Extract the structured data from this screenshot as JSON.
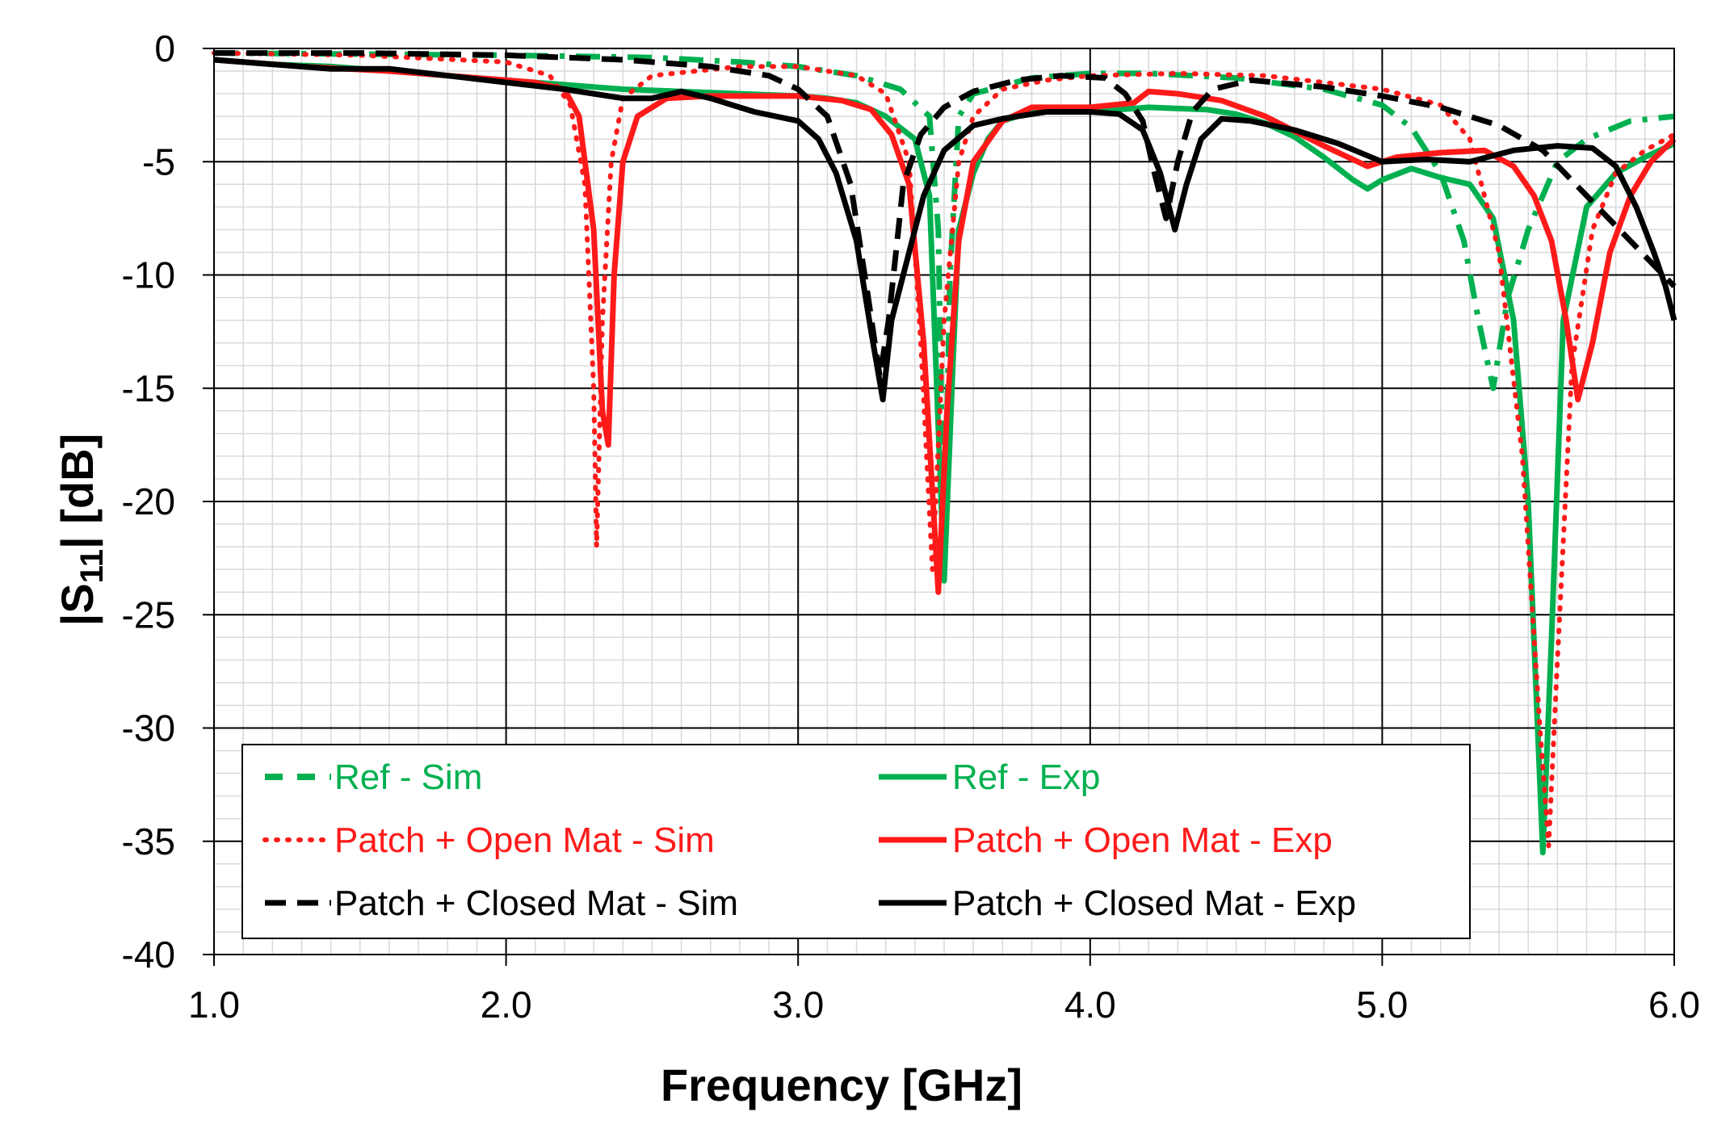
{
  "chart_data": {
    "type": "line",
    "title": "",
    "xlabel": "Frequency [GHz]",
    "ylabel_main": "|S",
    "ylabel_sub": "11",
    "ylabel_rest": "| [dB]",
    "xlim": [
      1.0,
      6.0
    ],
    "ylim": [
      -40,
      0
    ],
    "x_major_ticks": [
      1.0,
      2.0,
      3.0,
      4.0,
      5.0,
      6.0
    ],
    "x_tick_labels": [
      "1.0",
      "2.0",
      "3.0",
      "4.0",
      "5.0",
      "6.0"
    ],
    "x_minor_step": 0.1,
    "y_major_ticks": [
      0,
      -5,
      -10,
      -15,
      -20,
      -25,
      -30,
      -35,
      -40
    ],
    "y_tick_labels": [
      "0",
      "-5",
      "-10",
      "-15",
      "-20",
      "-25",
      "-30",
      "-35",
      "-40"
    ],
    "y_minor_step": 1,
    "grid": true,
    "legend_position": "bottom-left",
    "series": [
      {
        "name": "Ref - Sim",
        "color": "#00b050",
        "style": "dashdot",
        "points": [
          [
            1.0,
            -0.2
          ],
          [
            1.5,
            -0.25
          ],
          [
            2.0,
            -0.3
          ],
          [
            2.5,
            -0.4
          ],
          [
            2.8,
            -0.6
          ],
          [
            3.0,
            -0.8
          ],
          [
            3.2,
            -1.2
          ],
          [
            3.35,
            -1.8
          ],
          [
            3.45,
            -3.0
          ],
          [
            3.48,
            -8
          ],
          [
            3.5,
            -23
          ],
          [
            3.52,
            -10
          ],
          [
            3.55,
            -3.0
          ],
          [
            3.6,
            -2.0
          ],
          [
            3.8,
            -1.3
          ],
          [
            4.0,
            -1.1
          ],
          [
            4.2,
            -1.1
          ],
          [
            4.5,
            -1.3
          ],
          [
            4.8,
            -1.8
          ],
          [
            5.0,
            -2.5
          ],
          [
            5.1,
            -3.5
          ],
          [
            5.2,
            -5.5
          ],
          [
            5.28,
            -8.5
          ],
          [
            5.33,
            -12
          ],
          [
            5.38,
            -15
          ],
          [
            5.43,
            -11
          ],
          [
            5.5,
            -8
          ],
          [
            5.6,
            -5
          ],
          [
            5.7,
            -4
          ],
          [
            5.85,
            -3.2
          ],
          [
            6.0,
            -3.0
          ]
        ]
      },
      {
        "name": "Ref - Exp",
        "color": "#00b050",
        "style": "solid",
        "points": [
          [
            1.0,
            -0.5
          ],
          [
            1.2,
            -0.7
          ],
          [
            1.4,
            -0.8
          ],
          [
            1.6,
            -1.0
          ],
          [
            1.8,
            -1.2
          ],
          [
            2.0,
            -1.4
          ],
          [
            2.2,
            -1.6
          ],
          [
            2.4,
            -1.8
          ],
          [
            2.6,
            -1.9
          ],
          [
            2.8,
            -2.0
          ],
          [
            3.0,
            -2.1
          ],
          [
            3.1,
            -2.2
          ],
          [
            3.2,
            -2.4
          ],
          [
            3.3,
            -3.0
          ],
          [
            3.4,
            -4.0
          ],
          [
            3.45,
            -6.5
          ],
          [
            3.5,
            -23.5
          ],
          [
            3.53,
            -14
          ],
          [
            3.55,
            -8
          ],
          [
            3.6,
            -5.5
          ],
          [
            3.65,
            -4.0
          ],
          [
            3.7,
            -3.2
          ],
          [
            3.8,
            -2.8
          ],
          [
            4.0,
            -2.8
          ],
          [
            4.2,
            -2.6
          ],
          [
            4.4,
            -2.7
          ],
          [
            4.5,
            -2.9
          ],
          [
            4.6,
            -3.3
          ],
          [
            4.7,
            -3.9
          ],
          [
            4.8,
            -4.8
          ],
          [
            4.9,
            -5.8
          ],
          [
            4.95,
            -6.2
          ],
          [
            5.0,
            -5.8
          ],
          [
            5.1,
            -5.3
          ],
          [
            5.2,
            -5.7
          ],
          [
            5.3,
            -6.0
          ],
          [
            5.38,
            -7.5
          ],
          [
            5.45,
            -12
          ],
          [
            5.5,
            -20
          ],
          [
            5.55,
            -35.5
          ],
          [
            5.58,
            -26
          ],
          [
            5.62,
            -12
          ],
          [
            5.7,
            -7
          ],
          [
            5.8,
            -5.5
          ],
          [
            5.9,
            -4.8
          ],
          [
            6.0,
            -4.2
          ]
        ]
      },
      {
        "name": "Patch + Open Mat - Sim",
        "color": "#ff1a1a",
        "style": "dotted",
        "points": [
          [
            1.0,
            -0.2
          ],
          [
            1.5,
            -0.3
          ],
          [
            2.0,
            -0.6
          ],
          [
            2.15,
            -1.2
          ],
          [
            2.22,
            -2.5
          ],
          [
            2.27,
            -6
          ],
          [
            2.3,
            -15
          ],
          [
            2.31,
            -22
          ],
          [
            2.33,
            -12
          ],
          [
            2.36,
            -5
          ],
          [
            2.4,
            -2.2
          ],
          [
            2.5,
            -1.2
          ],
          [
            2.8,
            -0.8
          ],
          [
            3.0,
            -0.8
          ],
          [
            3.2,
            -1.2
          ],
          [
            3.3,
            -2.0
          ],
          [
            3.38,
            -5
          ],
          [
            3.42,
            -13
          ],
          [
            3.46,
            -23
          ],
          [
            3.5,
            -12
          ],
          [
            3.55,
            -5
          ],
          [
            3.6,
            -3.0
          ],
          [
            3.7,
            -1.8
          ],
          [
            3.85,
            -1.4
          ],
          [
            4.0,
            -1.2
          ],
          [
            4.3,
            -1.1
          ],
          [
            4.6,
            -1.2
          ],
          [
            5.0,
            -1.8
          ],
          [
            5.2,
            -2.5
          ],
          [
            5.3,
            -4.0
          ],
          [
            5.4,
            -9
          ],
          [
            5.48,
            -18
          ],
          [
            5.54,
            -30
          ],
          [
            5.57,
            -35.2
          ],
          [
            5.6,
            -27
          ],
          [
            5.65,
            -14
          ],
          [
            5.72,
            -8
          ],
          [
            5.8,
            -5.5
          ],
          [
            5.9,
            -4.5
          ],
          [
            6.0,
            -3.8
          ]
        ]
      },
      {
        "name": "Patch + Open Mat - Exp",
        "color": "#ff1a1a",
        "style": "solid",
        "points": [
          [
            1.0,
            -0.5
          ],
          [
            1.3,
            -0.8
          ],
          [
            1.6,
            -1.0
          ],
          [
            1.9,
            -1.3
          ],
          [
            2.1,
            -1.5
          ],
          [
            2.2,
            -1.8
          ],
          [
            2.25,
            -3.0
          ],
          [
            2.3,
            -8
          ],
          [
            2.33,
            -16
          ],
          [
            2.35,
            -17.5
          ],
          [
            2.37,
            -10
          ],
          [
            2.4,
            -5
          ],
          [
            2.45,
            -3
          ],
          [
            2.55,
            -2.2
          ],
          [
            2.7,
            -2.1
          ],
          [
            3.0,
            -2.1
          ],
          [
            3.15,
            -2.3
          ],
          [
            3.25,
            -2.7
          ],
          [
            3.32,
            -3.8
          ],
          [
            3.38,
            -6
          ],
          [
            3.43,
            -13
          ],
          [
            3.48,
            -24
          ],
          [
            3.51,
            -16
          ],
          [
            3.55,
            -8.5
          ],
          [
            3.6,
            -5
          ],
          [
            3.7,
            -3.2
          ],
          [
            3.8,
            -2.6
          ],
          [
            4.0,
            -2.6
          ],
          [
            4.15,
            -2.4
          ],
          [
            4.2,
            -1.9
          ],
          [
            4.3,
            -2.0
          ],
          [
            4.45,
            -2.3
          ],
          [
            4.6,
            -3.0
          ],
          [
            4.8,
            -4.3
          ],
          [
            4.95,
            -5.2
          ],
          [
            5.05,
            -4.8
          ],
          [
            5.2,
            -4.6
          ],
          [
            5.35,
            -4.5
          ],
          [
            5.45,
            -5.2
          ],
          [
            5.52,
            -6.5
          ],
          [
            5.58,
            -8.5
          ],
          [
            5.63,
            -12
          ],
          [
            5.67,
            -15.5
          ],
          [
            5.72,
            -13
          ],
          [
            5.78,
            -9
          ],
          [
            5.85,
            -6.5
          ],
          [
            5.92,
            -5
          ],
          [
            6.0,
            -4.0
          ]
        ]
      },
      {
        "name": "Patch + Closed Mat - Sim",
        "color": "#000000",
        "style": "dashed",
        "points": [
          [
            1.0,
            -0.2
          ],
          [
            1.5,
            -0.2
          ],
          [
            2.0,
            -0.3
          ],
          [
            2.4,
            -0.5
          ],
          [
            2.7,
            -0.8
          ],
          [
            2.9,
            -1.2
          ],
          [
            3.0,
            -1.8
          ],
          [
            3.1,
            -3.0
          ],
          [
            3.18,
            -6
          ],
          [
            3.24,
            -11
          ],
          [
            3.28,
            -14.5
          ],
          [
            3.31,
            -12
          ],
          [
            3.36,
            -6
          ],
          [
            3.42,
            -3.8
          ],
          [
            3.5,
            -2.6
          ],
          [
            3.6,
            -1.9
          ],
          [
            3.75,
            -1.4
          ],
          [
            3.9,
            -1.2
          ],
          [
            4.05,
            -1.3
          ],
          [
            4.12,
            -2.0
          ],
          [
            4.18,
            -3.2
          ],
          [
            4.22,
            -5.5
          ],
          [
            4.26,
            -7.5
          ],
          [
            4.3,
            -5
          ],
          [
            4.35,
            -2.8
          ],
          [
            4.42,
            -1.8
          ],
          [
            4.55,
            -1.4
          ],
          [
            4.8,
            -1.7
          ],
          [
            5.0,
            -2.1
          ],
          [
            5.2,
            -2.6
          ],
          [
            5.4,
            -3.4
          ],
          [
            5.55,
            -4.5
          ],
          [
            5.7,
            -6.5
          ],
          [
            5.85,
            -8.5
          ],
          [
            6.0,
            -10.5
          ]
        ]
      },
      {
        "name": "Patch + Closed Mat - Exp",
        "color": "#000000",
        "style": "solid",
        "points": [
          [
            1.0,
            -0.5
          ],
          [
            1.2,
            -0.7
          ],
          [
            1.4,
            -0.9
          ],
          [
            1.6,
            -0.9
          ],
          [
            1.8,
            -1.2
          ],
          [
            2.0,
            -1.5
          ],
          [
            2.2,
            -1.8
          ],
          [
            2.4,
            -2.2
          ],
          [
            2.5,
            -2.2
          ],
          [
            2.6,
            -1.9
          ],
          [
            2.7,
            -2.2
          ],
          [
            2.85,
            -2.8
          ],
          [
            3.0,
            -3.2
          ],
          [
            3.07,
            -4.0
          ],
          [
            3.13,
            -5.5
          ],
          [
            3.2,
            -8.5
          ],
          [
            3.25,
            -12.5
          ],
          [
            3.29,
            -15.5
          ],
          [
            3.32,
            -12
          ],
          [
            3.37,
            -9.5
          ],
          [
            3.43,
            -6.5
          ],
          [
            3.5,
            -4.5
          ],
          [
            3.6,
            -3.4
          ],
          [
            3.7,
            -3.1
          ],
          [
            3.85,
            -2.8
          ],
          [
            4.0,
            -2.8
          ],
          [
            4.1,
            -2.9
          ],
          [
            4.18,
            -3.6
          ],
          [
            4.24,
            -5.5
          ],
          [
            4.29,
            -8
          ],
          [
            4.33,
            -6
          ],
          [
            4.38,
            -4.0
          ],
          [
            4.45,
            -3.1
          ],
          [
            4.55,
            -3.2
          ],
          [
            4.7,
            -3.6
          ],
          [
            4.85,
            -4.2
          ],
          [
            5.0,
            -5.0
          ],
          [
            5.15,
            -4.9
          ],
          [
            5.3,
            -5.0
          ],
          [
            5.45,
            -4.5
          ],
          [
            5.6,
            -4.3
          ],
          [
            5.72,
            -4.4
          ],
          [
            5.8,
            -5.2
          ],
          [
            5.87,
            -7.0
          ],
          [
            5.93,
            -9.0
          ],
          [
            5.97,
            -10.5
          ],
          [
            6.0,
            -12.0
          ]
        ]
      }
    ]
  },
  "legend": [
    {
      "label": "Ref - Sim",
      "color": "#00b050",
      "style": "dashdot-legend"
    },
    {
      "label": "Ref - Exp",
      "color": "#00b050",
      "style": "solid"
    },
    {
      "label": "Patch + Open Mat - Sim",
      "color": "#ff1a1a",
      "style": "dotted"
    },
    {
      "label": "Patch + Open Mat - Exp",
      "color": "#ff1a1a",
      "style": "solid"
    },
    {
      "label": "Patch + Closed Mat - Sim",
      "color": "#000000",
      "style": "dashed"
    },
    {
      "label": "Patch + Closed Mat  - Exp",
      "color": "#000000",
      "style": "solid"
    }
  ]
}
